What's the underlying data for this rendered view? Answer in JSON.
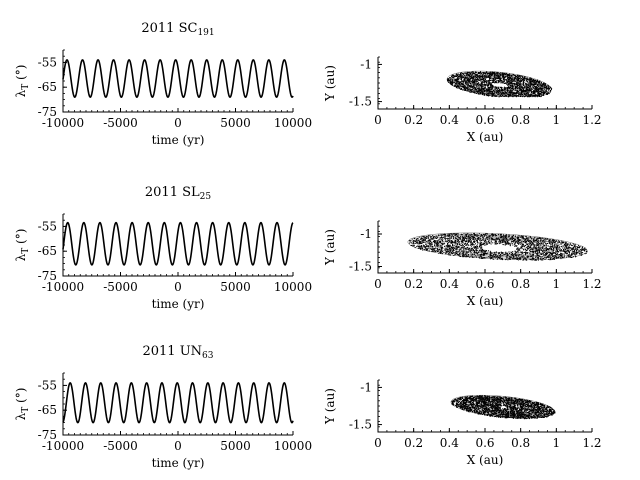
{
  "chart_data": [
    {
      "type": "line",
      "title": "2011 SC",
      "title_sub": "191",
      "xlabel": "time (yr)",
      "ylabel": "λT (°)",
      "ylabel_main": "λ",
      "ylabel_sub": "T",
      "ylabel_unit": " (°)",
      "xlim": [
        -10000,
        10000
      ],
      "ylim": [
        -75,
        -50
      ],
      "xticks": [
        -10000,
        -5000,
        0,
        5000,
        10000
      ],
      "yticks": [
        -55,
        -65,
        -75
      ],
      "series": [
        {
          "mean": -61.5,
          "amplitude": 7.5,
          "period_yr": 1350,
          "phase": 0.4,
          "trend": 0
        }
      ],
      "color": "#000000"
    },
    {
      "type": "scatter",
      "xlabel": "X (au)",
      "ylabel": "Y (au)",
      "xlim": [
        0,
        1.2
      ],
      "ylim": [
        -1.6,
        -0.9
      ],
      "xticks": [
        0,
        0.2,
        0.4,
        0.6,
        0.8,
        1,
        1.2
      ],
      "yticks": [
        -1,
        -1.5
      ],
      "series": [
        {
          "center": [
            0.68,
            -1.27
          ],
          "outer_radius": [
            0.33,
            0.18
          ],
          "inner_radius": [
            0.05,
            0.03
          ],
          "tilt_deg": -28,
          "x_range": [
            0.38,
            1.02
          ],
          "y_range": [
            -1.43,
            -1.08
          ]
        }
      ],
      "color": "#000000"
    },
    {
      "type": "line",
      "title": "2011 SL",
      "title_sub": "25",
      "xlabel": "time (yr)",
      "ylabel": "λT (°)",
      "ylabel_main": "λ",
      "ylabel_sub": "T",
      "ylabel_unit": " (°)",
      "xlim": [
        -10000,
        10000
      ],
      "ylim": [
        -75,
        -50
      ],
      "xticks": [
        -10000,
        -5000,
        0,
        5000,
        10000
      ],
      "yticks": [
        -55,
        -65,
        -75
      ],
      "series": [
        {
          "mean": -62,
          "amplitude": 8.5,
          "period_yr": 1400,
          "phase": 0.1,
          "trend": 0
        }
      ],
      "color": "#000000"
    },
    {
      "type": "scatter",
      "xlabel": "X (au)",
      "ylabel": "Y (au)",
      "xlim": [
        0,
        1.2
      ],
      "ylim": [
        -1.6,
        -0.8
      ],
      "xticks": [
        0,
        0.2,
        0.4,
        0.6,
        0.8,
        1,
        1.2
      ],
      "yticks": [
        -1,
        -1.5
      ],
      "series": [
        {
          "center": [
            0.67,
            -1.19
          ],
          "outer_radius": [
            0.52,
            0.2
          ],
          "inner_radius": [
            0.1,
            0.06
          ],
          "tilt_deg": -15,
          "hole_center": [
            0.68,
            -1.21
          ],
          "x_range": [
            0.16,
            1.18
          ],
          "y_range": [
            -1.45,
            -0.88
          ]
        }
      ],
      "color": "#000000"
    },
    {
      "type": "line",
      "title": "2011 UN",
      "title_sub": "63",
      "xlabel": "time (yr)",
      "ylabel": "λT (°)",
      "ylabel_main": "λ",
      "ylabel_sub": "T",
      "ylabel_unit": " (°)",
      "xlim": [
        -10000,
        10000
      ],
      "ylim": [
        -75,
        -50
      ],
      "xticks": [
        -10000,
        -5000,
        0,
        5000,
        10000
      ],
      "yticks": [
        -55,
        -65,
        -75
      ],
      "series": [
        {
          "mean": -62,
          "amplitude": 8,
          "period_yr": 1330,
          "phase": 0.3,
          "trend": 0
        }
      ],
      "color": "#000000"
    },
    {
      "type": "scatter",
      "xlabel": "X (au)",
      "ylabel": "Y (au)",
      "xlim": [
        0,
        1.2
      ],
      "ylim": [
        -1.6,
        -0.9
      ],
      "xticks": [
        0,
        0.2,
        0.4,
        0.6,
        0.8,
        1,
        1.2
      ],
      "yticks": [
        -1,
        -1.5
      ],
      "series": [
        {
          "center": [
            0.7,
            -1.26
          ],
          "outer_radius": [
            0.32,
            0.15
          ],
          "inner_radius": [
            0.02,
            0.02
          ],
          "tilt_deg": -25,
          "x_range": [
            0.4,
            1.04
          ],
          "y_range": [
            -1.42,
            -1.08
          ]
        }
      ],
      "color": "#000000"
    }
  ]
}
